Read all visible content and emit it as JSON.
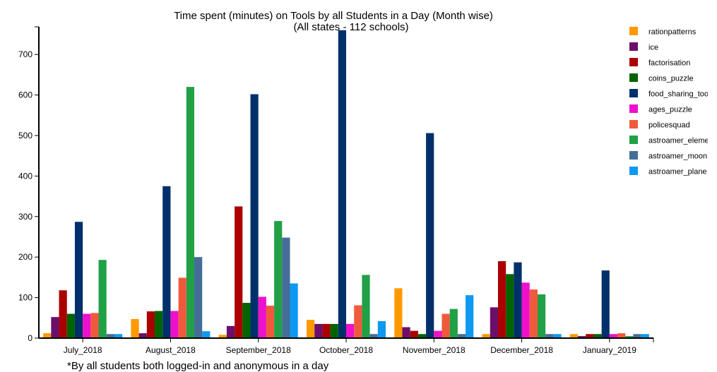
{
  "chart_data": {
    "type": "bar",
    "title": "Time spent (minutes) on Tools by all Students in a Day (Month wise)",
    "subtitle": "(All states - 112 schools)",
    "footnote": "*By all students both logged-in and anonymous in a day",
    "xlabel": "",
    "ylabel": "",
    "ylim": [
      0,
      760
    ],
    "yticks": [
      0,
      100,
      200,
      300,
      400,
      500,
      600,
      700
    ],
    "grid": false,
    "legend_position": "top-right",
    "categories": [
      "July_2018",
      "August_2018",
      "September_2018",
      "October_2018",
      "November_2018",
      "December_2018",
      "January_2019"
    ],
    "series": [
      {
        "name": "rationpatterns",
        "color": "#ff9900",
        "values": [
          12,
          47,
          8,
          45,
          123,
          10,
          10
        ]
      },
      {
        "name": "ice",
        "color": "#6b0f6b",
        "values": [
          52,
          12,
          30,
          35,
          27,
          76,
          5
        ]
      },
      {
        "name": "factorisation",
        "color": "#aa0000",
        "values": [
          118,
          66,
          325,
          35,
          18,
          190,
          10
        ]
      },
      {
        "name": "coins_puzzle",
        "color": "#006400",
        "values": [
          60,
          67,
          87,
          35,
          10,
          158,
          10
        ]
      },
      {
        "name": "food_sharing_tool",
        "color": "#00306b",
        "values": [
          287,
          375,
          602,
          765,
          506,
          187,
          167
        ]
      },
      {
        "name": "ages_puzzle",
        "color": "#ee10cc",
        "values": [
          60,
          67,
          102,
          35,
          18,
          137,
          10
        ]
      },
      {
        "name": "policesquad",
        "color": "#f05a3c",
        "values": [
          62,
          149,
          80,
          81,
          60,
          120,
          12
        ]
      },
      {
        "name": "astroamer_element_hunt_activity",
        "color": "#21a045",
        "values": [
          193,
          620,
          289,
          156,
          72,
          108,
          5
        ]
      },
      {
        "name": "astroamer_moon_track",
        "color": "#446d99",
        "values": [
          10,
          200,
          248,
          10,
          10,
          10,
          10
        ]
      },
      {
        "name": "astroamer_planet_trek_activity",
        "color": "#0d99f2",
        "values": [
          10,
          17,
          135,
          42,
          106,
          10,
          10
        ]
      }
    ]
  },
  "legend_labels": [
    "rationpatterns",
    "ice",
    "factorisation",
    "coins_puzzle",
    "food_sharing_too",
    "ages_puzzle",
    "policesquad",
    "astroamer_eleme",
    "astroamer_moon",
    "astroamer_plane"
  ]
}
